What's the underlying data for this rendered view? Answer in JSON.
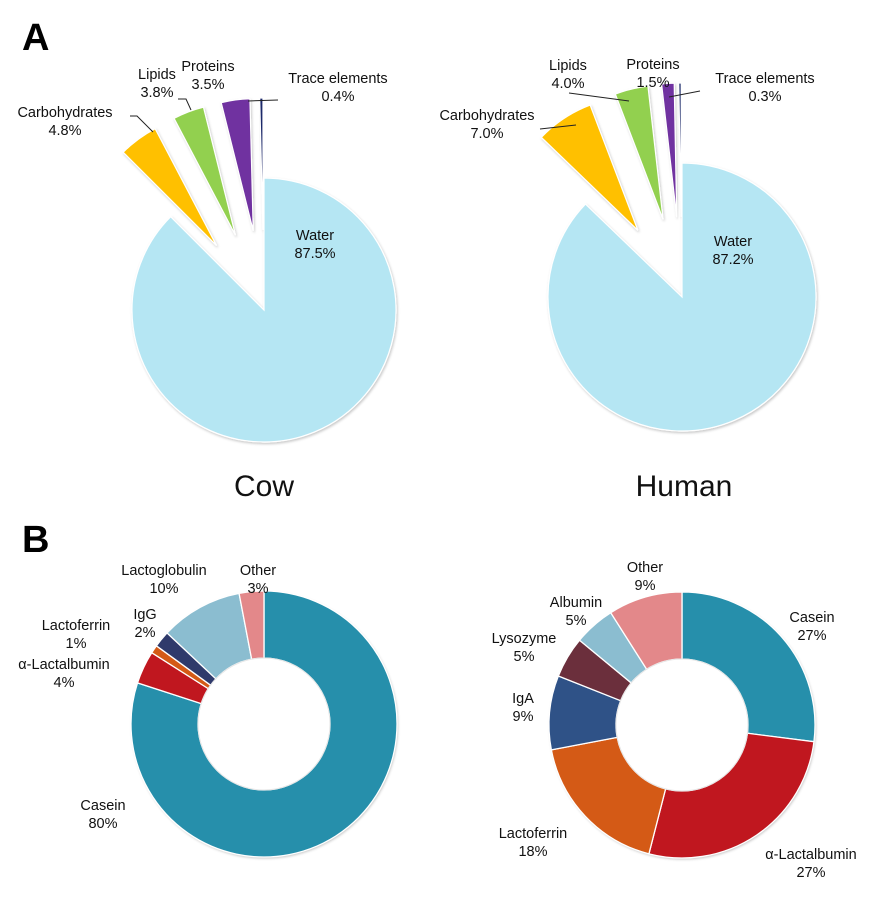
{
  "panels": {
    "a_letter": "A",
    "b_letter": "B"
  },
  "species": {
    "cow": "Cow",
    "human": "Human"
  },
  "chart_data": [
    {
      "type": "pie",
      "panel": "A",
      "title": "Cow",
      "exploded": [
        "Carbohydrates",
        "Lipids",
        "Proteins",
        "Trace elements"
      ],
      "slices": [
        {
          "label": "Water",
          "value": 87.5,
          "value_label": "87.5%",
          "color": "#b5e6f3"
        },
        {
          "label": "Carbohydrates",
          "value": 4.8,
          "value_label": "4.8%",
          "color": "#ffc000"
        },
        {
          "label": "Lipids",
          "value": 3.8,
          "value_label": "3.8%",
          "color": "#92d050"
        },
        {
          "label": "Proteins",
          "value": 3.5,
          "value_label": "3.5%",
          "color": "#7030a0"
        },
        {
          "label": "Trace elements",
          "value": 0.4,
          "value_label": "0.4%",
          "color": "#1f2a6b"
        }
      ]
    },
    {
      "type": "pie",
      "panel": "A",
      "title": "Human",
      "exploded": [
        "Carbohydrates",
        "Lipids",
        "Proteins",
        "Trace elements"
      ],
      "slices": [
        {
          "label": "Water",
          "value": 87.2,
          "value_label": "87.2%",
          "color": "#b5e6f3"
        },
        {
          "label": "Carbohydrates",
          "value": 7.0,
          "value_label": "7.0%",
          "color": "#ffc000"
        },
        {
          "label": "Lipids",
          "value": 4.0,
          "value_label": "4.0%",
          "color": "#92d050"
        },
        {
          "label": "Proteins",
          "value": 1.5,
          "value_label": "1.5%",
          "color": "#7030a0"
        },
        {
          "label": "Trace elements",
          "value": 0.3,
          "value_label": "0.3%",
          "color": "#1f2a6b"
        }
      ]
    },
    {
      "type": "donut",
      "panel": "B",
      "title": "Cow",
      "slices": [
        {
          "label": "Casein",
          "value": 80,
          "value_label": "80%",
          "color": "#268fab"
        },
        {
          "label": "α-Lactalbumin",
          "value": 4,
          "value_label": "4%",
          "color": "#c0171f"
        },
        {
          "label": "Lactoferrin",
          "value": 1,
          "value_label": "1%",
          "color": "#d45a16"
        },
        {
          "label": "IgG",
          "value": 2,
          "value_label": "2%",
          "color": "#2f3a6b"
        },
        {
          "label": "Lactoglobulin",
          "value": 10,
          "value_label": "10%",
          "color": "#8bbdd0"
        },
        {
          "label": "Other",
          "value": 3,
          "value_label": "3%",
          "color": "#e3888a"
        }
      ]
    },
    {
      "type": "donut",
      "panel": "B",
      "title": "Human",
      "slices": [
        {
          "label": "Casein",
          "value": 27,
          "value_label": "27%",
          "color": "#268fab"
        },
        {
          "label": "α-Lactalbumin",
          "value": 27,
          "value_label": "27%",
          "color": "#c0171f"
        },
        {
          "label": "Lactoferrin",
          "value": 18,
          "value_label": "18%",
          "color": "#d45a16"
        },
        {
          "label": "IgA",
          "value": 9,
          "value_label": "9%",
          "color": "#2f5287"
        },
        {
          "label": "Lysozyme",
          "value": 5,
          "value_label": "5%",
          "color": "#6b2f3c"
        },
        {
          "label": "Albumin",
          "value": 5,
          "value_label": "5%",
          "color": "#8bbdd0"
        },
        {
          "label": "Other",
          "value": 9,
          "value_label": "9%",
          "color": "#e3888a"
        }
      ]
    }
  ]
}
